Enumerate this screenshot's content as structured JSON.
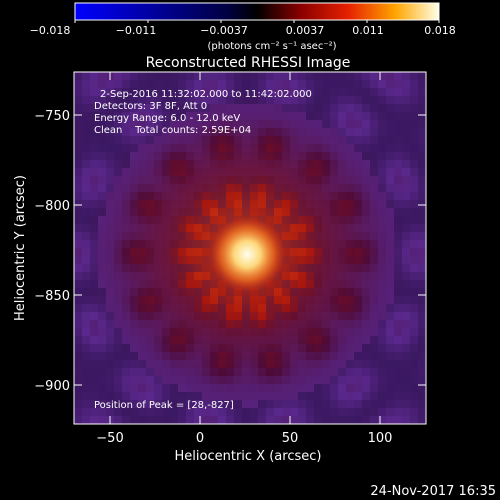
{
  "colorbar": {
    "ticks": [
      "−0.018",
      "−0.011",
      "−0.0037",
      "0.0037",
      "0.011",
      "0.018"
    ],
    "units_label": "(photons cm⁻² s⁻¹ asec⁻²)"
  },
  "plot": {
    "title": "Reconstructed RHESSI Image",
    "xlabel": "Heliocentric X (arcsec)",
    "ylabel": "Heliocentric Y (arcsec)",
    "x_ticks": [
      "−50",
      "0",
      "50",
      "100"
    ],
    "y_ticks": [
      "−750",
      "−800",
      "−850",
      "−900"
    ],
    "info": [
      "2-Sep-2016 11:32:02.000 to 11:42:02.000",
      "Detectors: 3F 8F, Att 0",
      "Energy Range: 6.0 - 12.0 keV",
      "Clean    Total counts: 2.59E+04"
    ],
    "peak_text": "Position of Peak = [28,-827]",
    "peak_x": 28,
    "peak_y": -827,
    "xlim": [
      -66,
      125
    ],
    "ylim": [
      -922,
      -725
    ]
  },
  "footer": {
    "timestamp": "24-Nov-2017 16:35"
  }
}
